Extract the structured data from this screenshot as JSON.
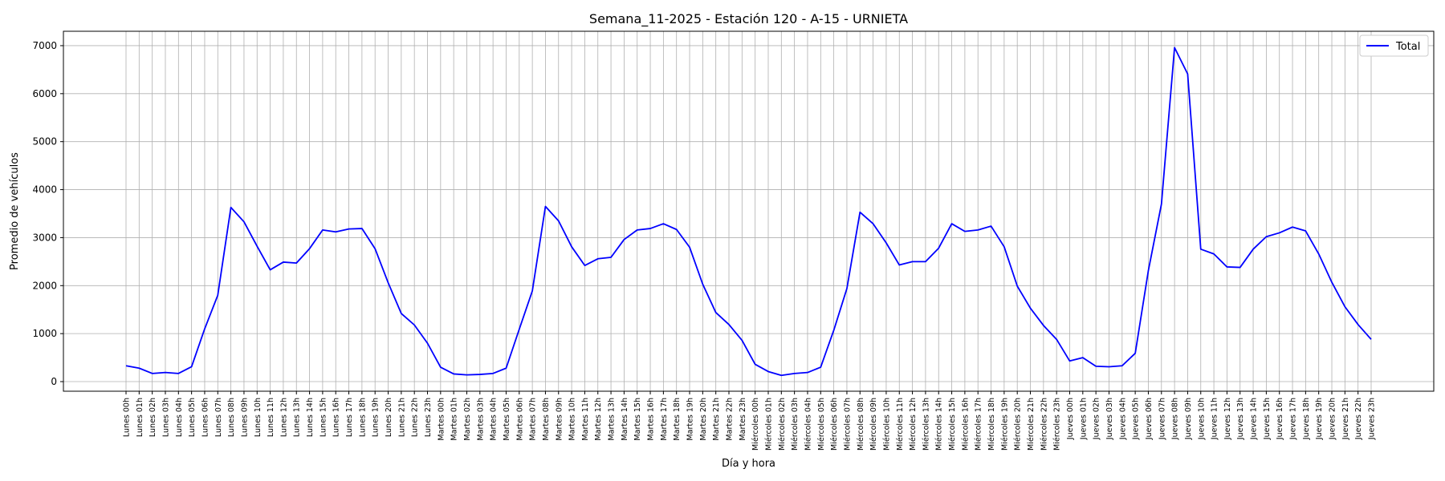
{
  "chart_data": {
    "type": "line",
    "title": "Semana_11-2025 - Estación 120 - A-15  - URNIETA",
    "xlabel": "Día y hora",
    "ylabel": "Promedio de vehículos",
    "ylim": [
      -200,
      7300
    ],
    "yticks": [
      0,
      1000,
      2000,
      3000,
      4000,
      5000,
      6000,
      7000
    ],
    "grid": true,
    "legend_position": "top-right",
    "x": [
      "Lunes 00h",
      "Lunes 01h",
      "Lunes 02h",
      "Lunes 03h",
      "Lunes 04h",
      "Lunes 05h",
      "Lunes 06h",
      "Lunes 07h",
      "Lunes 08h",
      "Lunes 09h",
      "Lunes 10h",
      "Lunes 11h",
      "Lunes 12h",
      "Lunes 13h",
      "Lunes 14h",
      "Lunes 15h",
      "Lunes 16h",
      "Lunes 17h",
      "Lunes 18h",
      "Lunes 19h",
      "Lunes 20h",
      "Lunes 21h",
      "Lunes 22h",
      "Lunes 23h",
      "Martes 00h",
      "Martes 01h",
      "Martes 02h",
      "Martes 03h",
      "Martes 04h",
      "Martes 05h",
      "Martes 06h",
      "Martes 07h",
      "Martes 08h",
      "Martes 09h",
      "Martes 10h",
      "Martes 11h",
      "Martes 12h",
      "Martes 13h",
      "Martes 14h",
      "Martes 15h",
      "Martes 16h",
      "Martes 17h",
      "Martes 18h",
      "Martes 19h",
      "Martes 20h",
      "Martes 21h",
      "Martes 22h",
      "Martes 23h",
      "Miércoles 00h",
      "Miércoles 01h",
      "Miércoles 02h",
      "Miércoles 03h",
      "Miércoles 04h",
      "Miércoles 05h",
      "Miércoles 06h",
      "Miércoles 07h",
      "Miércoles 08h",
      "Miércoles 09h",
      "Miércoles 10h",
      "Miércoles 11h",
      "Miércoles 12h",
      "Miércoles 13h",
      "Miércoles 14h",
      "Miércoles 15h",
      "Miércoles 16h",
      "Miércoles 17h",
      "Miércoles 18h",
      "Miércoles 19h",
      "Miércoles 20h",
      "Miércoles 21h",
      "Miércoles 22h",
      "Miércoles 23h",
      "Jueves 00h",
      "Jueves 01h",
      "Jueves 02h",
      "Jueves 03h",
      "Jueves 04h",
      "Jueves 05h",
      "Jueves 06h",
      "Jueves 07h",
      "Jueves 08h",
      "Jueves 09h",
      "Jueves 10h",
      "Jueves 11h",
      "Jueves 12h",
      "Jueves 13h",
      "Jueves 14h",
      "Jueves 15h",
      "Jueves 16h",
      "Jueves 17h",
      "Jueves 18h",
      "Jueves 19h",
      "Jueves 20h",
      "Jueves 21h",
      "Jueves 22h",
      "Jueves 23h"
    ],
    "series": [
      {
        "name": "Total",
        "color": "#0000ff",
        "values": [
          330,
          280,
          170,
          190,
          170,
          310,
          1100,
          1800,
          3630,
          3330,
          2820,
          2330,
          2490,
          2470,
          2770,
          3160,
          3120,
          3180,
          3190,
          2770,
          2060,
          1420,
          1180,
          800,
          300,
          160,
          140,
          150,
          170,
          280,
          1090,
          1890,
          3650,
          3350,
          2810,
          2420,
          2560,
          2590,
          2960,
          3160,
          3190,
          3290,
          3170,
          2800,
          2030,
          1440,
          1190,
          860,
          360,
          210,
          130,
          170,
          190,
          300,
          1070,
          1940,
          3530,
          3290,
          2890,
          2430,
          2500,
          2500,
          2780,
          3290,
          3130,
          3160,
          3240,
          2810,
          1990,
          1530,
          1170,
          880,
          430,
          500,
          320,
          310,
          330,
          590,
          2310,
          3700,
          6960,
          6410,
          2760,
          2660,
          2390,
          2380,
          2760,
          3020,
          3100,
          3220,
          3140,
          2660,
          2070,
          1560,
          1190,
          880
        ]
      }
    ]
  }
}
